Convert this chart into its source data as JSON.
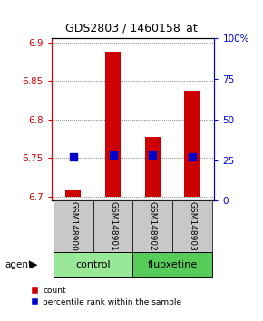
{
  "title": "GDS2803 / 1460158_at",
  "samples": [
    "GSM148900",
    "GSM148901",
    "GSM148902",
    "GSM148903"
  ],
  "bar_color": "#CC0000",
  "dot_color": "#0000CC",
  "ylim_left": [
    6.695,
    6.905
  ],
  "yticks_left": [
    6.7,
    6.75,
    6.8,
    6.85,
    6.9
  ],
  "ytick_labels_left": [
    "6.7",
    "6.75",
    "6.8",
    "6.85",
    "6.9"
  ],
  "yticks_right": [
    0,
    25,
    50,
    75,
    100
  ],
  "ytick_labels_right": [
    "0",
    "25",
    "50",
    "75",
    "100%"
  ],
  "count_values": [
    6.708,
    6.888,
    6.778,
    6.838
  ],
  "count_base": 6.7,
  "percentile_values": [
    27,
    28,
    28,
    27
  ],
  "bar_width": 0.4,
  "dot_size": 35,
  "grid_color": "#555555",
  "sample_box_color": "#C8C8C8",
  "control_green": "#98E898",
  "fluoxetine_green": "#58CC58"
}
